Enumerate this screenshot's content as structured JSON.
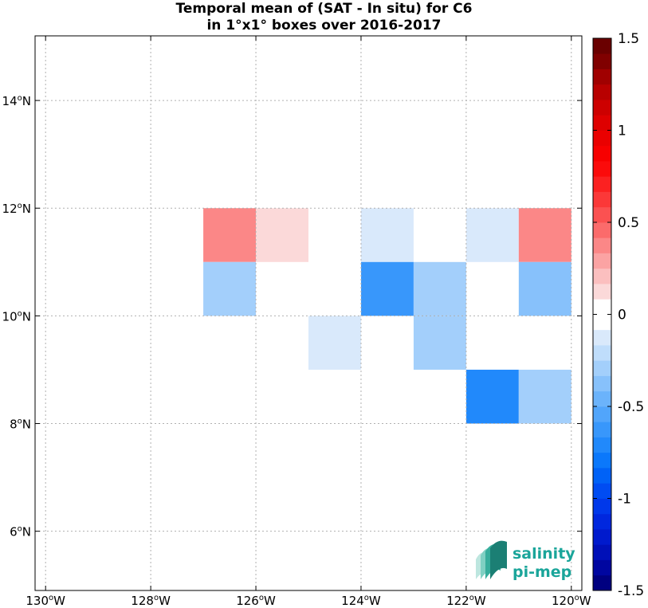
{
  "title_line1": "Temporal mean of (SAT - In situ) for C6",
  "title_line2": "in 1°x1° boxes over 2016-2017",
  "logo": {
    "line1": "salinity",
    "line2": "pi-mep",
    "color": "#1aa59a"
  },
  "chart_data": {
    "type": "heatmap",
    "title": "Temporal mean of (SAT - In situ) for C6 in 1°x1° boxes over 2016-2017",
    "xlabel": "",
    "ylabel": "",
    "xlim": [
      -130.2,
      -119.8
    ],
    "ylim": [
      4.9,
      15.2
    ],
    "grid": true,
    "x_ticks": [
      -130,
      -128,
      -126,
      -124,
      -122,
      -120
    ],
    "x_tick_labels": [
      {
        "num": "130",
        "sup": "o",
        "suf": "W"
      },
      {
        "num": "128",
        "sup": "o",
        "suf": "W"
      },
      {
        "num": "126",
        "sup": "o",
        "suf": "W"
      },
      {
        "num": "124",
        "sup": "o",
        "suf": "W"
      },
      {
        "num": "122",
        "sup": "o",
        "suf": "W"
      },
      {
        "num": "120",
        "sup": "o",
        "suf": "W"
      }
    ],
    "y_ticks": [
      6,
      8,
      10,
      12,
      14
    ],
    "y_tick_labels": [
      {
        "num": "6",
        "sup": "o",
        "suf": "N"
      },
      {
        "num": "8",
        "sup": "o",
        "suf": "N"
      },
      {
        "num": "10",
        "sup": "o",
        "suf": "N"
      },
      {
        "num": "12",
        "sup": "o",
        "suf": "N"
      },
      {
        "num": "14",
        "sup": "o",
        "suf": "N"
      }
    ],
    "cells": [
      {
        "lon_min": -127,
        "lat_min": 11,
        "value": 0.35
      },
      {
        "lon_min": -126,
        "lat_min": 11,
        "value": 0.15
      },
      {
        "lon_min": -124,
        "lat_min": 11,
        "value": -0.1
      },
      {
        "lon_min": -122,
        "lat_min": 11,
        "value": -0.1
      },
      {
        "lon_min": -121,
        "lat_min": 11,
        "value": 0.35
      },
      {
        "lon_min": -127,
        "lat_min": 10,
        "value": -0.3
      },
      {
        "lon_min": -124,
        "lat_min": 10,
        "value": -0.6
      },
      {
        "lon_min": -123,
        "lat_min": 10,
        "value": -0.3
      },
      {
        "lon_min": -121,
        "lat_min": 10,
        "value": -0.4
      },
      {
        "lon_min": -125,
        "lat_min": 9,
        "value": -0.1
      },
      {
        "lon_min": -123,
        "lat_min": 9,
        "value": -0.3
      },
      {
        "lon_min": -122,
        "lat_min": 8,
        "value": -0.7
      },
      {
        "lon_min": -121,
        "lat_min": 8,
        "value": -0.3
      }
    ],
    "colorbar": {
      "min": -1.5,
      "max": 1.5,
      "ticks": [
        -1.5,
        -1,
        -0.5,
        0,
        0.5,
        1,
        1.5
      ],
      "tick_labels": [
        "-1.5",
        "-1",
        "-0.5",
        "0",
        "0.5",
        "1",
        "1.5"
      ],
      "colors": [
        "#000080",
        "#0006a0",
        "#0010b8",
        "#001acd",
        "#0027de",
        "#0038ea",
        "#004cf2",
        "#0062f7",
        "#0b78fb",
        "#2189fb",
        "#3897fb",
        "#51a5fb",
        "#6bb3fb",
        "#87c1fb",
        "#a3cffb",
        "#bfddfb",
        "#d9e9fb",
        "#ffffff",
        "#ffffff",
        "#fbd9d9",
        "#fbbfbf",
        "#fba3a3",
        "#fb8787",
        "#fb6b6b",
        "#fb5151",
        "#fb3838",
        "#fb2121",
        "#fb0b0b",
        "#f70000",
        "#ea0000",
        "#de0000",
        "#cd0000",
        "#b80000",
        "#a00000",
        "#800000",
        "#6a0000"
      ]
    }
  }
}
